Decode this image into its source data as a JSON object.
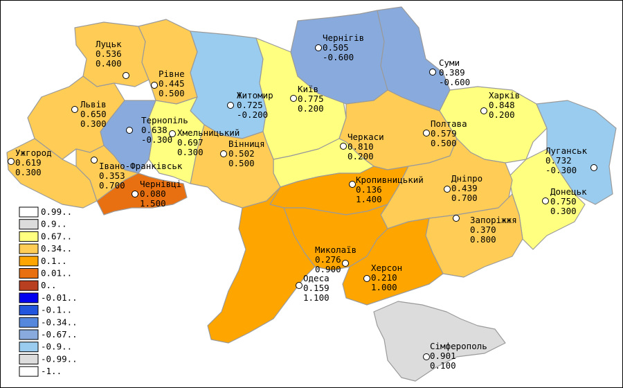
{
  "legend": [
    {
      "label": "0.99..",
      "color": "#ffffff"
    },
    {
      "label": "0.9..",
      "color": "#dcdcdc"
    },
    {
      "label": "0.67..",
      "color": "#ffff80"
    },
    {
      "label": "0.34..",
      "color": "#ffcc55"
    },
    {
      "label": "0.1..",
      "color": "#ffa500"
    },
    {
      "label": "0.01..",
      "color": "#e87010"
    },
    {
      "label": "0..",
      "color": "#b84020"
    },
    {
      "label": "-0.01..",
      "color": "#0000ee"
    },
    {
      "label": "-0.1..",
      "color": "#2255dd"
    },
    {
      "label": "-0.34..",
      "color": "#5588dd"
    },
    {
      "label": "-0.67..",
      "color": "#88aadd"
    },
    {
      "label": "-0.9..",
      "color": "#99ccee"
    },
    {
      "label": "-0.99..",
      "color": "#dddddd"
    },
    {
      "label": "-1..",
      "color": "#ffffff"
    }
  ],
  "cities": [
    {
      "name": "Луцьк",
      "v1": "0.536",
      "v2": "0.400"
    },
    {
      "name": "Рівне",
      "v1": "0.445",
      "v2": "0.500"
    },
    {
      "name": "Житомир",
      "v1": "0.725",
      "v2": "-0.200"
    },
    {
      "name": "Чернігів",
      "v1": "0.505",
      "v2": "-0.600"
    },
    {
      "name": "Суми",
      "v1": "0.389",
      "v2": "-0.600"
    },
    {
      "name": "Київ",
      "v1": "0.775",
      "v2": "0.200"
    },
    {
      "name": "Львів",
      "v1": "0.650",
      "v2": "0.300"
    },
    {
      "name": "Тернопіль",
      "v1": "0.638",
      "v2": "-0.300"
    },
    {
      "name": "Хмельницький",
      "v1": "0.697",
      "v2": "0.300"
    },
    {
      "name": "Вінниця",
      "v1": "0.502",
      "v2": "0.500"
    },
    {
      "name": "Черкаси",
      "v1": "0.810",
      "v2": "0.200"
    },
    {
      "name": "Полтава",
      "v1": "0.579",
      "v2": "0.500"
    },
    {
      "name": "Харків",
      "v1": "0.848",
      "v2": "0.200"
    },
    {
      "name": "Луганськ",
      "v1": "0.732",
      "v2": "-0.300"
    },
    {
      "name": "Ужгород",
      "v1": "0.619",
      "v2": "0.300"
    },
    {
      "name": "Івано-Франківськ",
      "v1": "0.353",
      "v2": "0.700"
    },
    {
      "name": "Чернівці",
      "v1": "0.080",
      "v2": "1.500"
    },
    {
      "name": "Кропивницький",
      "v1": "0.136",
      "v2": "1.400"
    },
    {
      "name": "Дніпро",
      "v1": "0.439",
      "v2": "0.700"
    },
    {
      "name": "Донецьк",
      "v1": "0.750",
      "v2": "0.300"
    },
    {
      "name": "Запоріжжя",
      "v1": "0.370",
      "v2": "0.800"
    },
    {
      "name": "Миколаїв",
      "v1": "0.276",
      "v2": "0.900"
    },
    {
      "name": "Херсон",
      "v1": "0.210",
      "v2": "1.000"
    },
    {
      "name": "Одеса",
      "v1": "0.159",
      "v2": "1.100"
    },
    {
      "name": "Сімферополь",
      "v1": "0.901",
      "v2": "0.100"
    }
  ]
}
